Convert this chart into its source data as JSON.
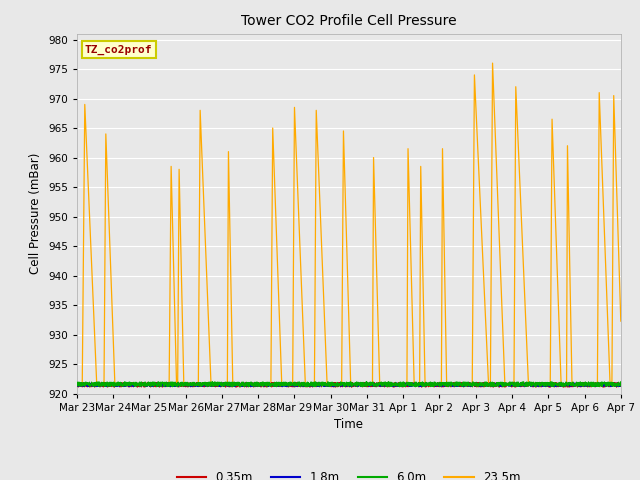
{
  "title": "Tower CO2 Profile Cell Pressure",
  "xlabel": "Time",
  "ylabel": "Cell Pressure (mBar)",
  "ylim": [
    920,
    981
  ],
  "yticks": [
    920,
    925,
    930,
    935,
    940,
    945,
    950,
    955,
    960,
    965,
    970,
    975,
    980
  ],
  "fig_bg_color": "#e8e8e8",
  "plot_bg_color": "#e8e8e8",
  "legend_entries": [
    "0.35m",
    "1.8m",
    "6.0m",
    "23.5m"
  ],
  "legend_colors": [
    "#cc0000",
    "#0000cc",
    "#00aa00",
    "#ffaa00"
  ],
  "annotation_text": "TZ_co2prof",
  "annotation_color": "#990000",
  "annotation_bg": "#ffffcc",
  "annotation_border": "#cccc00",
  "base_value": 921.5,
  "spikes": [
    {
      "start": 0.15,
      "peak": 969.0,
      "peak_end": 0.22,
      "fall_end": 0.55
    },
    {
      "start": 0.75,
      "peak": 964.0,
      "peak_end": 0.8,
      "fall_end": 1.05
    },
    {
      "start": 2.55,
      "peak": 958.5,
      "peak_end": 2.6,
      "fall_end": 2.75
    },
    {
      "start": 2.78,
      "peak": 958.0,
      "peak_end": 2.82,
      "fall_end": 2.95
    },
    {
      "start": 3.35,
      "peak": 968.0,
      "peak_end": 3.4,
      "fall_end": 3.7
    },
    {
      "start": 4.15,
      "peak": 961.0,
      "peak_end": 4.18,
      "fall_end": 4.3
    },
    {
      "start": 5.35,
      "peak": 965.0,
      "peak_end": 5.4,
      "fall_end": 5.65
    },
    {
      "start": 5.95,
      "peak": 968.5,
      "peak_end": 6.0,
      "fall_end": 6.3
    },
    {
      "start": 6.55,
      "peak": 968.0,
      "peak_end": 6.6,
      "fall_end": 6.9
    },
    {
      "start": 7.3,
      "peak": 964.5,
      "peak_end": 7.35,
      "fall_end": 7.55
    },
    {
      "start": 8.15,
      "peak": 960.0,
      "peak_end": 8.18,
      "fall_end": 8.35
    },
    {
      "start": 9.1,
      "peak": 961.5,
      "peak_end": 9.13,
      "fall_end": 9.3
    },
    {
      "start": 9.45,
      "peak": 958.5,
      "peak_end": 9.48,
      "fall_end": 9.6
    },
    {
      "start": 10.05,
      "peak": 961.5,
      "peak_end": 10.08,
      "fall_end": 10.2
    },
    {
      "start": 10.9,
      "peak": 974.0,
      "peak_end": 10.96,
      "fall_end": 11.35
    },
    {
      "start": 11.4,
      "peak": 976.0,
      "peak_end": 11.46,
      "fall_end": 11.8
    },
    {
      "start": 12.05,
      "peak": 972.0,
      "peak_end": 12.1,
      "fall_end": 12.45
    },
    {
      "start": 13.05,
      "peak": 966.5,
      "peak_end": 13.1,
      "fall_end": 13.35
    },
    {
      "start": 13.5,
      "peak": 962.0,
      "peak_end": 13.53,
      "fall_end": 13.65
    },
    {
      "start": 14.35,
      "peak": 971.0,
      "peak_end": 14.4,
      "fall_end": 14.7
    },
    {
      "start": 14.75,
      "peak": 970.5,
      "peak_end": 14.8,
      "fall_end": 15.05
    }
  ],
  "xticklabels": [
    "Mar 23",
    "Mar 24",
    "Mar 25",
    "Mar 26",
    "Mar 27",
    "Mar 28",
    "Mar 29",
    "Mar 30",
    "Mar 31",
    "Apr 1",
    "Apr 2",
    "Apr 3",
    "Apr 4",
    "Apr 5",
    "Apr 6",
    "Apr 7"
  ],
  "xtick_positions": [
    0,
    1,
    2,
    3,
    4,
    5,
    6,
    7,
    8,
    9,
    10,
    11,
    12,
    13,
    14,
    15
  ],
  "xlim": [
    0,
    15
  ]
}
